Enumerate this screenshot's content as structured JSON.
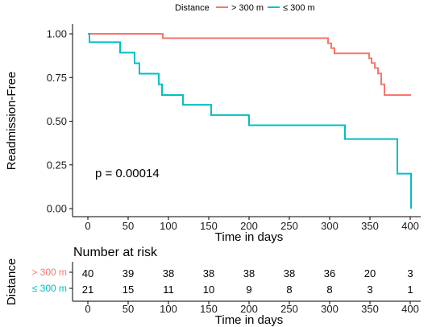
{
  "chart_data": {
    "type": "line",
    "legend": {
      "title": "Distance",
      "position": "top"
    },
    "xlabel": "Time in days",
    "ylabel": "Readmission-Free",
    "xlim": [
      0,
      400
    ],
    "ylim": [
      0,
      1
    ],
    "x_ticks": [
      0,
      50,
      100,
      150,
      200,
      250,
      300,
      350,
      400
    ],
    "y_ticks": [
      "0.00",
      "0.25",
      "0.50",
      "0.75",
      "1.00"
    ],
    "annotation": "p = 0.00014",
    "series": [
      {
        "name": "> 300 m",
        "color": "#F8766D",
        "steps": [
          [
            0,
            1.0
          ],
          [
            93,
            0.975
          ],
          [
            298,
            0.946
          ],
          [
            302,
            0.918
          ],
          [
            306,
            0.888
          ],
          [
            318,
            0.888
          ],
          [
            349,
            0.86
          ],
          [
            352,
            0.833
          ],
          [
            356,
            0.805
          ],
          [
            360,
            0.773
          ],
          [
            364,
            0.711
          ],
          [
            368,
            0.65
          ],
          [
            401,
            0.65
          ]
        ]
      },
      {
        "name": "≤ 300 m",
        "color": "#00BFC4",
        "steps": [
          [
            0,
            1.0
          ],
          [
            2,
            0.952
          ],
          [
            40,
            0.892
          ],
          [
            58,
            0.832
          ],
          [
            64,
            0.772
          ],
          [
            88,
            0.711
          ],
          [
            92,
            0.65
          ],
          [
            118,
            0.594
          ],
          [
            153,
            0.535
          ],
          [
            200,
            0.477
          ],
          [
            319,
            0.398
          ],
          [
            384,
            0.2
          ],
          [
            401,
            0.0
          ]
        ]
      }
    ],
    "risk_table": {
      "title": "Number at risk",
      "ylabel": "Distance",
      "xlabel": "Time in days",
      "times": [
        0,
        50,
        100,
        150,
        200,
        250,
        300,
        350,
        400
      ],
      "groups": [
        {
          "label": "> 300 m",
          "color": "#F8766D",
          "counts": [
            40,
            39,
            38,
            38,
            38,
            38,
            36,
            20,
            3
          ]
        },
        {
          "label": "≤ 300 m",
          "color": "#00BFC4",
          "counts": [
            21,
            15,
            11,
            10,
            9,
            8,
            8,
            3,
            1
          ]
        }
      ]
    }
  }
}
